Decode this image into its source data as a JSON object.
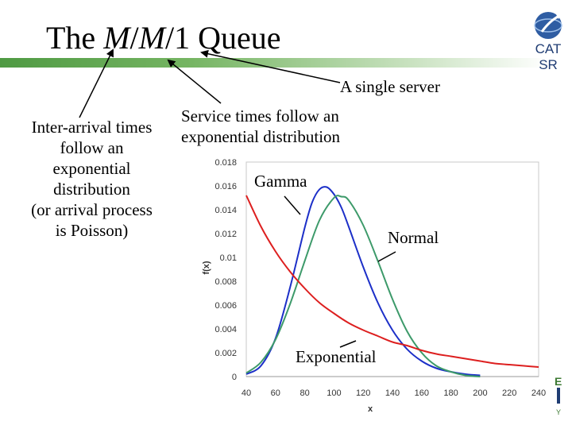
{
  "title": {
    "pre": "The ",
    "m1": "M",
    "slash1": "/",
    "m2": "M",
    "rest": "/1 Queue"
  },
  "logo": {
    "line1": "CAT",
    "line2": "SR"
  },
  "annotations": {
    "inter_arrival": [
      "Inter-arrival times",
      "follow an",
      "exponential",
      "distribution",
      "(or arrival process",
      "is Poisson)"
    ],
    "service": [
      "Service times follow an",
      "exponential distribution"
    ],
    "single_server": "A single server",
    "gamma": "Gamma",
    "normal": "Normal",
    "exponential": "Exponential"
  },
  "colors": {
    "gamma": "#1c2fc8",
    "normal": "#3d9a6a",
    "exponential": "#dd1f1f",
    "title_bar": "#4f9a43",
    "logo": "#1f3c73"
  },
  "chart_data": {
    "type": "line",
    "xlabel": "x",
    "ylabel": "f(x)",
    "xlim": [
      40,
      240
    ],
    "ylim": [
      0,
      0.018
    ],
    "x_ticks": [
      "40",
      "60",
      "80",
      "100",
      "120",
      "140",
      "160",
      "180",
      "200",
      "220",
      "240"
    ],
    "y_ticks": [
      "0",
      "0.002",
      "0.004",
      "0.006",
      "0.008",
      "0.01",
      "0.012",
      "0.014",
      "0.016",
      "0.018"
    ],
    "series": [
      {
        "name": "Gamma",
        "color": "#1c2fc8",
        "x": [
          40,
          50,
          60,
          70,
          80,
          85,
          90,
          95,
          100,
          105,
          110,
          120,
          130,
          140,
          150,
          160,
          170,
          180,
          190,
          200
        ],
        "y": [
          0.0002,
          0.0009,
          0.0032,
          0.0075,
          0.0125,
          0.0146,
          0.0157,
          0.0159,
          0.0153,
          0.0142,
          0.0126,
          0.0092,
          0.0062,
          0.0039,
          0.0023,
          0.0013,
          0.0007,
          0.0004,
          0.0002,
          0.0001
        ]
      },
      {
        "name": "Normal",
        "color": "#3d9a6a",
        "x": [
          40,
          50,
          60,
          70,
          80,
          90,
          100,
          105,
          110,
          120,
          130,
          140,
          150,
          160,
          170,
          180,
          190,
          200
        ],
        "y": [
          0.0003,
          0.0012,
          0.0031,
          0.0061,
          0.0097,
          0.0131,
          0.015,
          0.0151,
          0.0148,
          0.0127,
          0.0097,
          0.0065,
          0.0038,
          0.002,
          0.0009,
          0.0004,
          0.0001,
          0.0
        ]
      },
      {
        "name": "Exponential",
        "color": "#dd1f1f",
        "x": [
          40,
          50,
          60,
          70,
          80,
          90,
          100,
          110,
          120,
          130,
          140,
          150,
          160,
          170,
          180,
          190,
          200,
          210,
          220,
          230,
          240
        ],
        "y": [
          0.0152,
          0.0126,
          0.0105,
          0.0088,
          0.0074,
          0.0062,
          0.0053,
          0.0045,
          0.0039,
          0.0034,
          0.0029,
          0.0026,
          0.0022,
          0.0019,
          0.0017,
          0.0015,
          0.0013,
          0.0011,
          0.001,
          0.0009,
          0.0008
        ]
      }
    ]
  }
}
